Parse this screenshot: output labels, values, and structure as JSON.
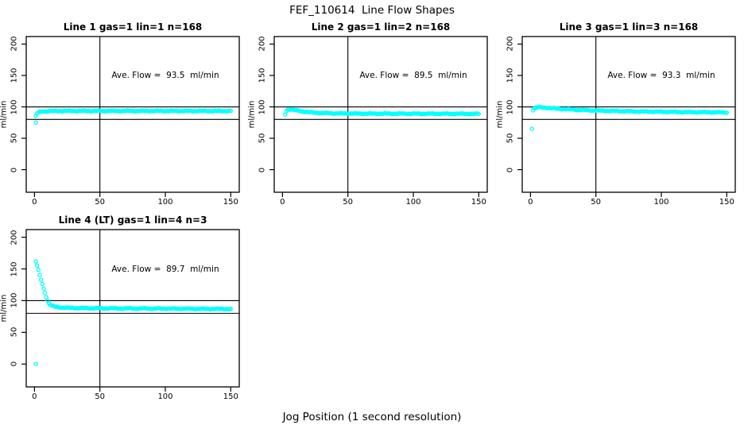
{
  "page": {
    "title": "FEF_110614  Line Flow Shapes",
    "xlabel": "Jog Position (1 second resolution)",
    "background": "#ffffff"
  },
  "chart_data": {
    "type": "scatter",
    "point_color": "#00ffff",
    "axis_color": "#000000",
    "marker": "open-circle",
    "xlim": [
      -6.3,
      156.5
    ],
    "ylim": [
      -36,
      212
    ],
    "x_ticks": [
      0,
      50,
      100,
      150
    ],
    "y_ticks": [
      0,
      50,
      100,
      150,
      200
    ],
    "ref_lines_h": [
      80,
      100
    ],
    "ref_line_v": 50,
    "ylab": "ml/min",
    "annotation_at": [
      100,
      150
    ],
    "panels": [
      {
        "title": "Line 1 gas=1 lin=1 n=168",
        "gas": 1,
        "lin": 1,
        "n": 168,
        "ave_flow": 93.5,
        "annotation": "Ave. Flow =  93.5  ml/min",
        "series_anchors": [
          [
            1,
            85
          ],
          [
            2,
            89
          ],
          [
            3,
            91
          ],
          [
            4,
            92
          ],
          [
            6,
            92.8
          ],
          [
            10,
            93.2
          ],
          [
            20,
            93.5
          ],
          [
            80,
            93.5
          ],
          [
            150,
            93.4
          ]
        ],
        "outliers": [
          [
            1,
            75
          ]
        ]
      },
      {
        "title": "Line 2 gas=1 lin=2 n=168",
        "gas": 1,
        "lin": 2,
        "n": 168,
        "ave_flow": 89.5,
        "annotation": "Ave. Flow =  89.5  ml/min",
        "series_anchors": [
          [
            2,
            88
          ],
          [
            3,
            93.5
          ],
          [
            4,
            95.5
          ],
          [
            5,
            96.2
          ],
          [
            7,
            95.8
          ],
          [
            10,
            94.6
          ],
          [
            14,
            93.2
          ],
          [
            20,
            91.6
          ],
          [
            28,
            90.4
          ],
          [
            40,
            89.6
          ],
          [
            60,
            89.2
          ],
          [
            100,
            89.1
          ],
          [
            150,
            88.9
          ]
        ],
        "outliers": []
      },
      {
        "title": "Line 3 gas=1 lin=3 n=168",
        "gas": 1,
        "lin": 3,
        "n": 168,
        "ave_flow": 93.3,
        "annotation": "Ave. Flow =  93.3  ml/min",
        "series_anchors": [
          [
            2,
            95
          ],
          [
            3,
            97.5
          ],
          [
            4,
            99
          ],
          [
            6,
            99.3
          ],
          [
            10,
            98.8
          ],
          [
            15,
            98.1
          ],
          [
            20,
            97.2
          ],
          [
            30,
            96
          ],
          [
            40,
            95
          ],
          [
            50,
            94.2
          ],
          [
            60,
            93.6
          ],
          [
            80,
            92.8
          ],
          [
            100,
            92.2
          ],
          [
            120,
            91.7
          ],
          [
            150,
            91.2
          ]
        ],
        "outliers": [
          [
            1,
            65
          ]
        ]
      },
      {
        "title": "Line 4 (LT) gas=1 lin=4 n=3",
        "gas": 1,
        "lin": 4,
        "n": 3,
        "ave_flow": 89.7,
        "annotation": "Ave. Flow =  89.7  ml/min",
        "series_anchors": [
          [
            1,
            162
          ],
          [
            2,
            155
          ],
          [
            3,
            148
          ],
          [
            4,
            140
          ],
          [
            5,
            133
          ],
          [
            6,
            126
          ],
          [
            7,
            119
          ],
          [
            8,
            113
          ],
          [
            9,
            106
          ],
          [
            10,
            100
          ],
          [
            11,
            96
          ],
          [
            12,
            93.5
          ],
          [
            14,
            91.5
          ],
          [
            16,
            90.3
          ],
          [
            20,
            89.3
          ],
          [
            25,
            88.7
          ],
          [
            35,
            88.2
          ],
          [
            60,
            87.8
          ],
          [
            100,
            87.4
          ],
          [
            150,
            86.8
          ]
        ],
        "outliers": [
          [
            1,
            0
          ]
        ]
      }
    ]
  }
}
